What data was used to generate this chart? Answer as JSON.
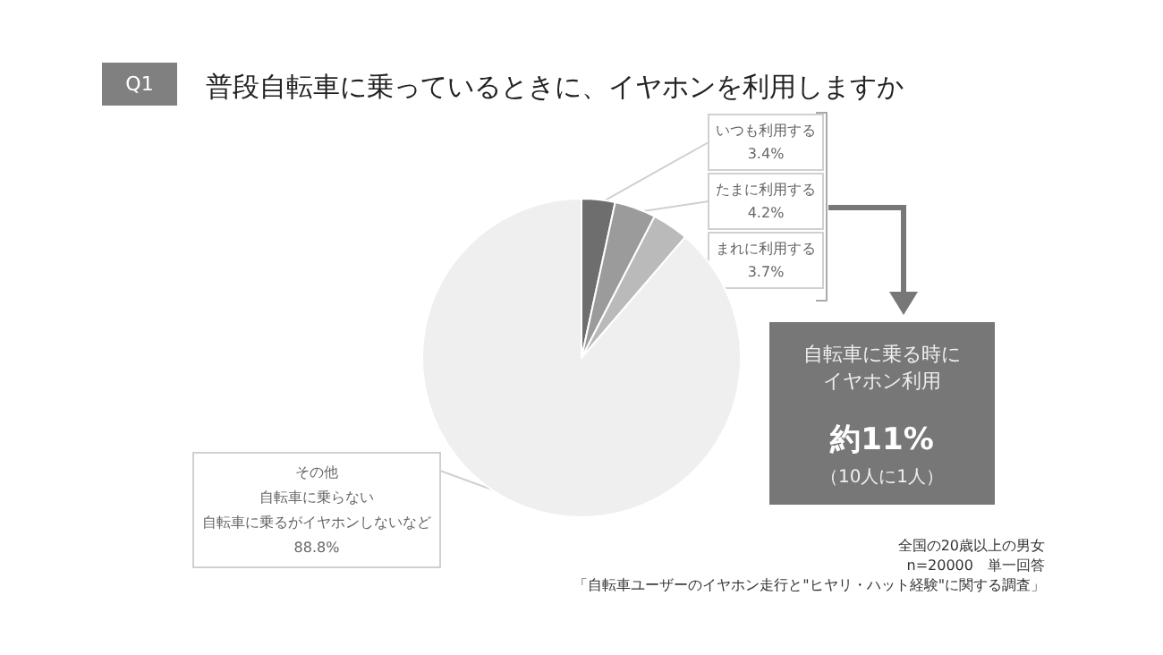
{
  "chart_data": {
    "type": "pie",
    "title": "普段自転車に乗っているときに、イヤホンを利用しますか",
    "categories": [
      "いつも利用する",
      "たまに利用する",
      "まれに利用する",
      "その他"
    ],
    "values": [
      3.4,
      4.2,
      3.7,
      88.8
    ],
    "value_labels": [
      "3.4%",
      "4.2%",
      "3.7%",
      "88.8%"
    ],
    "colors": [
      "#6e6e6e",
      "#9b9b9b",
      "#bababa",
      "#efefef"
    ],
    "annotations": [
      "Q1",
      "自転車に乗る時に",
      "イヤホン利用",
      "約11%",
      "（10人に1人）",
      "全国の20歳以上の男女",
      "n=20000　単一回答",
      "「自転車ユーザーのイヤホン走行と\"ヒヤリ・ハット経験\"に関する調査」",
      "自転車に乗らない",
      "自転車に乗るがイヤホンしないなど"
    ],
    "legend": false
  }
}
